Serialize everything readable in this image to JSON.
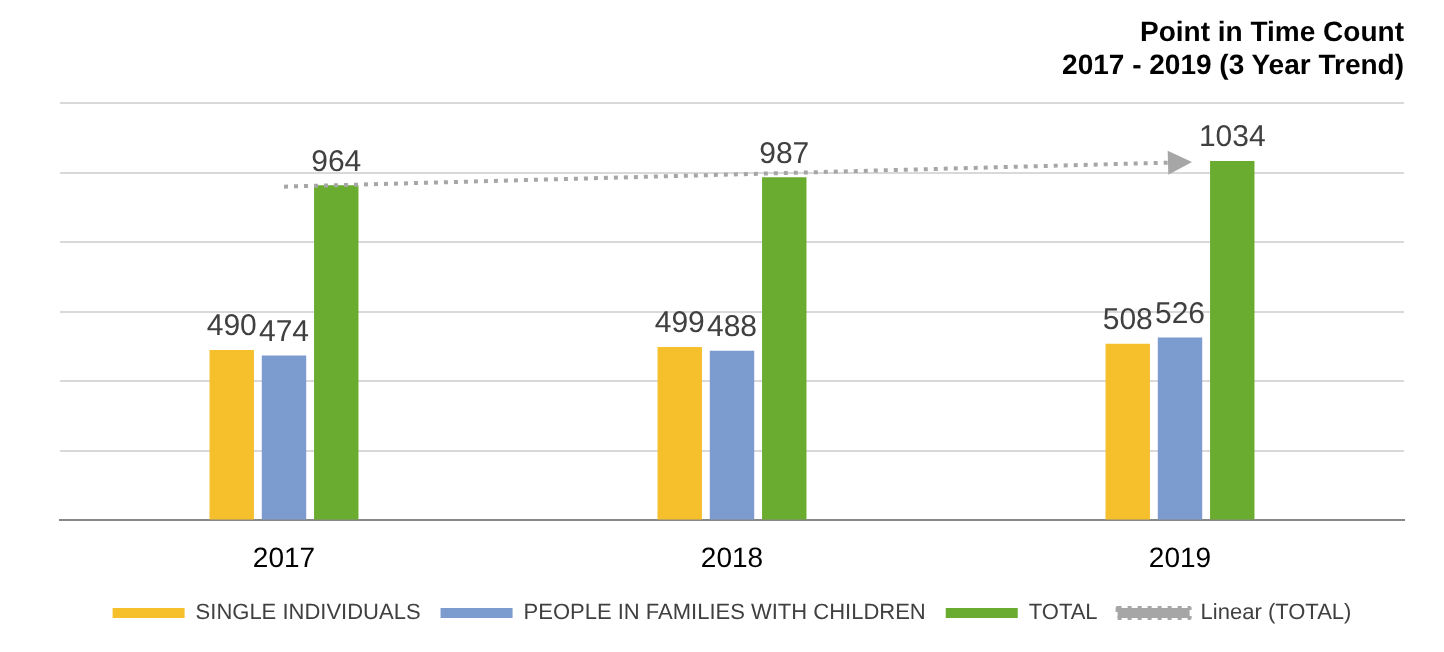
{
  "chart_data": {
    "type": "bar",
    "title": "Point in Time Count",
    "subtitle": "2017 - 2019 (3 Year Trend)",
    "categories": [
      "2017",
      "2018",
      "2019"
    ],
    "series": [
      {
        "name": "SINGLE INDIVIDUALS",
        "color": "#f5c02c",
        "values": [
          490,
          499,
          508
        ],
        "value_labels": [
          "490",
          "499",
          "508"
        ]
      },
      {
        "name": "PEOPLE IN FAMILIES WITH CHILDREN",
        "color": "#7c9ccf",
        "values": [
          474,
          488,
          526
        ],
        "value_labels": [
          "474",
          "488",
          "526"
        ]
      },
      {
        "name": "TOTAL",
        "color": "#6aac2f",
        "values": [
          964,
          987,
          1034
        ],
        "value_labels": [
          "964",
          "987",
          "1034"
        ]
      },
      {
        "name": "Linear (TOTAL)",
        "type": "line",
        "color": "#a6a6a6",
        "line_style": "dotted",
        "marker": "none",
        "values": [
          960,
          995,
          1030
        ]
      }
    ],
    "ylim": [
      0,
      1200
    ],
    "yticks": [
      {
        "value": 0,
        "label": null
      },
      {
        "value": 200,
        "label": null
      },
      {
        "value": 400,
        "label": null
      },
      {
        "value": 600,
        "label": null
      },
      {
        "value": 800,
        "label": null
      },
      {
        "value": 1000,
        "label": null
      },
      {
        "value": 1200,
        "label": null
      }
    ],
    "tick_labels": "x",
    "grid": "y",
    "legend": "bottom"
  }
}
